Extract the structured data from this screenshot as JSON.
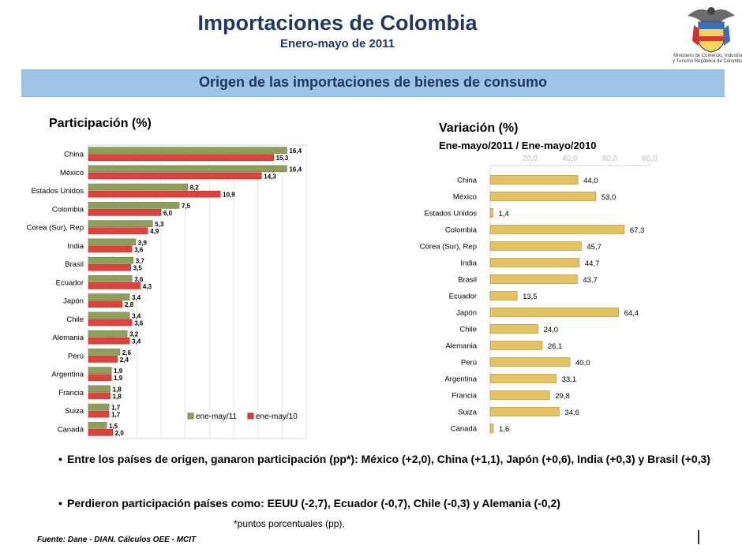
{
  "header": {
    "title": "Importaciones de Colombia",
    "subtitle": "Enero-mayo de 2011",
    "ministry": "Ministerio de Comercio, Industria y Turismo República de Colombia"
  },
  "banner": "Origen de las importaciones de bienes de consumo",
  "bullets": {
    "b1": "Entre los países de origen, ganaron participación (pp*): México (+2,0), China (+1,1), Japón (+0,6), India (+0,3) y Brasil (+0,3)",
    "b2": "Perdieron participación países como: EEUU (-2,7), Ecuador (-0,7), Chile (-0,3) y  Alemania (-0,2)",
    "marker": "•"
  },
  "footnote": "*puntos porcentuales (pp),",
  "source": "Fuente: Dane - DIAN. Cálculos OEE - MCIT",
  "colors": {
    "title": "#1f3864",
    "banner": "#9dc3e6",
    "series_2011": "#8ca05c",
    "series_2010": "#e2413b",
    "variation": "#e3c25f"
  },
  "chart_data": [
    {
      "type": "bar",
      "orientation": "horizontal",
      "title": "Participación (%)",
      "categories": [
        "China",
        "México",
        "Estados Unidos",
        "Colombia",
        "Corea (Sur), Rep",
        "India",
        "Brasil",
        "Ecuador",
        "Japón",
        "Chile",
        "Alemania",
        "Perú",
        "Argentina",
        "Francia",
        "Suiza",
        "Canadá"
      ],
      "series": [
        {
          "name": "ene-may/11",
          "values": [
            16.4,
            16.4,
            8.2,
            7.5,
            5.3,
            3.9,
            3.7,
            3.6,
            3.4,
            3.4,
            3.2,
            2.6,
            1.9,
            1.8,
            1.7,
            1.5
          ]
        },
        {
          "name": "ene-may/10",
          "values": [
            15.3,
            14.3,
            10.9,
            6.0,
            4.9,
            3.6,
            3.5,
            4.3,
            2.8,
            3.6,
            3.4,
            2.4,
            1.9,
            1.8,
            1.7,
            2.0
          ]
        }
      ],
      "labels": {
        "ene-may/11": [
          "16,4",
          "16,4",
          "8,2",
          "7,5",
          "5,3",
          "3,9",
          "3,7",
          "3,6",
          "3,4",
          "3,4",
          "3,2",
          "2,6",
          "1,9",
          "1,8",
          "1,7",
          "1,5"
        ],
        "ene-may/10": [
          "15,3",
          "14,3",
          "10,9",
          "6,0",
          "4,9",
          "3,6",
          "3,5",
          "4,3",
          "2,8",
          "3,6",
          "3,4",
          "2,4",
          "1,9",
          "1,8",
          "1,7",
          "2,0"
        ]
      },
      "xlim": [
        0,
        18
      ],
      "legend": "bottom-right",
      "grid": true
    },
    {
      "type": "bar",
      "orientation": "horizontal",
      "title": "Variación (%)",
      "subtitle": "Ene-mayo/2011 / Ene-mayo/2010",
      "categories": [
        "China",
        "México",
        "Estados Unidos",
        "Colombia",
        "Corea (Sur), Rep",
        "India",
        "Brasil",
        "Ecuador",
        "Japón",
        "Chile",
        "Alemania",
        "Perú",
        "Argentina",
        "Francia",
        "Suiza",
        "Canadá"
      ],
      "values": [
        44.0,
        53.0,
        1.4,
        67.3,
        45.7,
        44.7,
        43.7,
        13.5,
        64.4,
        24.0,
        26.1,
        40.0,
        33.1,
        29.8,
        34.6,
        1.6
      ],
      "labels": [
        "44,0",
        "53,0",
        "1,4",
        "67,3",
        "45,7",
        "44,7",
        "43,7",
        "13,5",
        "64,4",
        "24,0",
        "26,1",
        "40,0",
        "33,1",
        "29,8",
        "34,6",
        "1,6"
      ],
      "xticks": [
        "20,0",
        "40,0",
        "60,0",
        "80,0"
      ],
      "xtick_values": [
        20,
        40,
        60,
        80
      ],
      "xlim": [
        0,
        80
      ],
      "grid": false
    }
  ]
}
